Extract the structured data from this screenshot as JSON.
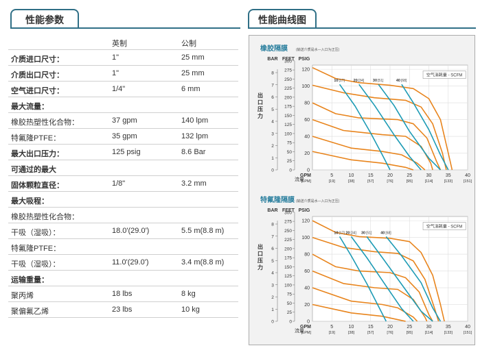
{
  "left_tab": {
    "label": "性能参数"
  },
  "right_tab": {
    "label": "性能曲线图"
  },
  "spec": {
    "header": {
      "col1": "",
      "col2": "英制",
      "col3": "公制"
    },
    "rows": [
      {
        "label": "介质进口尺寸：",
        "imperial": "1\"",
        "metric": "25 mm",
        "bold": true
      },
      {
        "label": "介质出口尺寸：",
        "imperial": "1\"",
        "metric": "25 mm",
        "bold": true
      },
      {
        "label": "空气进口尺寸：",
        "imperial": "1/4\"",
        "metric": "6 mm",
        "bold": true
      },
      {
        "label": "最大流量：",
        "imperial": "",
        "metric": "",
        "bold": true
      },
      {
        "label": "橡胶热塑性化合物：",
        "imperial": "37 gpm",
        "metric": "140 lpm",
        "bold": false
      },
      {
        "label": "特氟隆PTFE：",
        "imperial": "35 gpm",
        "metric": "132 lpm",
        "bold": false
      },
      {
        "label": "最大出口压力：",
        "imperial": "125 psig",
        "metric": "8.6 Bar",
        "bold": true
      },
      {
        "label": "可通过的最大",
        "imperial": "",
        "metric": "",
        "bold": true
      },
      {
        "label": "固体颗粒直径：",
        "imperial": "1/8\"",
        "metric": "3.2 mm",
        "bold": true
      },
      {
        "label": "最大吸程：",
        "imperial": "",
        "metric": "",
        "bold": true
      },
      {
        "label": "橡胶热塑性化合物：",
        "imperial": "",
        "metric": "",
        "bold": false
      },
      {
        "label": "干吸（湿吸）：",
        "imperial": "18.0'(29.0')",
        "metric": "5.5 m(8.8 m)",
        "bold": false
      },
      {
        "label": "特氟隆PTFE：",
        "imperial": "",
        "metric": "",
        "bold": false
      },
      {
        "label": "干吸（湿吸）：",
        "imperial": "11.0'(29.0')",
        "metric": "3.4 m(8.8 m)",
        "bold": false
      },
      {
        "label": "运输重量：",
        "imperial": "",
        "metric": "",
        "bold": true
      },
      {
        "label": "聚丙烯",
        "imperial": "18 lbs",
        "metric": "8 kg",
        "bold": false
      },
      {
        "label": "聚偏氟乙烯",
        "imperial": "23 lbs",
        "metric": "10 kg",
        "bold": false
      }
    ]
  },
  "chart_data": [
    {
      "type": "line",
      "title": "橡胶隔膜",
      "subtitle": "(输送介质是水—入口为正压)",
      "unit_headers": [
        "BAR",
        "FEET",
        "PSIG"
      ],
      "ylabel": "出口压力",
      "xlabel": "流量",
      "x_unit_labels": [
        "GPM",
        "[LPM]"
      ],
      "x_ticks": [
        "5",
        "10",
        "15",
        "20",
        "25",
        "30",
        "35",
        "40"
      ],
      "x_ticks_lpm": [
        "[19]",
        "[38]",
        "[57]",
        "[76]",
        "[95]",
        "[114]",
        "[133]",
        "[151]"
      ],
      "y_psig_ticks": [
        "0",
        "20",
        "40",
        "60",
        "80",
        "100",
        "120"
      ],
      "y_feet_ticks": [
        "0",
        "25",
        "50",
        "75",
        "100",
        "125",
        "150",
        "175",
        "200",
        "225",
        "250",
        "275",
        "300"
      ],
      "y_bar_ticks": [
        "0",
        "1",
        "2",
        "3",
        "4",
        "5",
        "6",
        "7",
        "8"
      ],
      "xlim": [
        0,
        40
      ],
      "ylim": [
        0,
        130
      ],
      "legend_box": "空气消耗量 - SCFM",
      "air_labels": [
        "10",
        "[17]",
        "20",
        "[34]",
        "30",
        "[51]",
        "40",
        "[68]"
      ],
      "pressure_curves": [
        {
          "color": "#e8841c",
          "points": [
            [
              0,
              122
            ],
            [
              6,
              109
            ],
            [
              12,
              104
            ],
            [
              20,
              101
            ],
            [
              26,
              97
            ],
            [
              30,
              85
            ],
            [
              33,
              60
            ],
            [
              35,
              20
            ],
            [
              36,
              0
            ]
          ]
        },
        {
          "color": "#e8841c",
          "points": [
            [
              0,
              101
            ],
            [
              8,
              92
            ],
            [
              16,
              86
            ],
            [
              24,
              83
            ],
            [
              28,
              75
            ],
            [
              31,
              55
            ],
            [
              33.5,
              20
            ],
            [
              34.5,
              0
            ]
          ]
        },
        {
          "color": "#e8841c",
          "points": [
            [
              0,
              80
            ],
            [
              6,
              67
            ],
            [
              12,
              62
            ],
            [
              22,
              60
            ],
            [
              26,
              55
            ],
            [
              29.5,
              38
            ],
            [
              32,
              10
            ],
            [
              33,
              0
            ]
          ]
        },
        {
          "color": "#e8841c",
          "points": [
            [
              0,
              60
            ],
            [
              8,
              47
            ],
            [
              18,
              42
            ],
            [
              24,
              40
            ],
            [
              28,
              28
            ],
            [
              30.5,
              8
            ],
            [
              31,
              0
            ]
          ]
        },
        {
          "color": "#e8841c",
          "points": [
            [
              0,
              40
            ],
            [
              10,
              26
            ],
            [
              18,
              22
            ],
            [
              23,
              18
            ],
            [
              27,
              8
            ],
            [
              29,
              0
            ]
          ]
        },
        {
          "color": "#e8841c",
          "points": [
            [
              0,
              22
            ],
            [
              10,
              12
            ],
            [
              18,
              8
            ],
            [
              24,
              3
            ],
            [
              26,
              0
            ]
          ]
        }
      ],
      "air_curves": [
        {
          "color": "#1d9bb5",
          "points": [
            [
              7,
              102
            ],
            [
              11,
              76
            ],
            [
              15,
              44
            ],
            [
              18,
              18
            ],
            [
              20,
              0
            ]
          ]
        },
        {
          "color": "#1d9bb5",
          "points": [
            [
              12,
              102
            ],
            [
              16,
              77
            ],
            [
              21,
              42
            ],
            [
              25,
              16
            ],
            [
              28,
              0
            ]
          ]
        },
        {
          "color": "#1d9bb5",
          "points": [
            [
              17,
              102
            ],
            [
              21,
              77
            ],
            [
              25,
              46
            ],
            [
              30,
              14
            ],
            [
              33,
              0
            ]
          ]
        },
        {
          "color": "#1d9bb5",
          "points": [
            [
              23,
              102
            ],
            [
              26,
              80
            ],
            [
              30,
              48
            ],
            [
              33,
              18
            ],
            [
              35,
              0
            ]
          ]
        }
      ]
    },
    {
      "type": "line",
      "title": "特氟隆隔膜",
      "subtitle": "(输送介质是水—入口为正压)",
      "unit_headers": [
        "BAR",
        "FEET",
        "PSIG"
      ],
      "ylabel": "出口压力",
      "xlabel": "流量",
      "x_unit_labels": [
        "GPM",
        "[LPM]"
      ],
      "x_ticks": [
        "5",
        "10",
        "15",
        "20",
        "25",
        "30",
        "35",
        "40"
      ],
      "x_ticks_lpm": [
        "[19]",
        "[38]",
        "[57]",
        "[76]",
        "[95]",
        "[114]",
        "[133]",
        "[151]"
      ],
      "y_psig_ticks": [
        "0",
        "20",
        "40",
        "60",
        "80",
        "100",
        "120"
      ],
      "y_feet_ticks": [
        "0",
        "25",
        "50",
        "75",
        "100",
        "125",
        "150",
        "175",
        "200",
        "225",
        "250",
        "275",
        "300"
      ],
      "y_bar_ticks": [
        "0",
        "1",
        "2",
        "3",
        "4",
        "5",
        "6",
        "7",
        "8"
      ],
      "xlim": [
        0,
        40
      ],
      "ylim": [
        0,
        130
      ],
      "legend_box": "空气消耗量 - SCFM",
      "air_labels": [
        "10",
        "[17]",
        "20",
        "[34]",
        "30",
        "[51]",
        "40",
        "[68]"
      ],
      "pressure_curves": [
        {
          "color": "#e8841c",
          "points": [
            [
              0,
              120
            ],
            [
              6,
              106
            ],
            [
              12,
              101
            ],
            [
              20,
              99
            ],
            [
              25,
              95
            ],
            [
              28,
              82
            ],
            [
              31,
              55
            ],
            [
              33,
              20
            ],
            [
              34,
              0
            ]
          ]
        },
        {
          "color": "#e8841c",
          "points": [
            [
              0,
              100
            ],
            [
              8,
              88
            ],
            [
              16,
              83
            ],
            [
              22,
              81
            ],
            [
              26,
              72
            ],
            [
              29,
              50
            ],
            [
              31.5,
              15
            ],
            [
              32.5,
              0
            ]
          ]
        },
        {
          "color": "#e8841c",
          "points": [
            [
              0,
              80
            ],
            [
              6,
              65
            ],
            [
              12,
              60
            ],
            [
              20,
              58
            ],
            [
              24,
              52
            ],
            [
              27.5,
              35
            ],
            [
              30,
              8
            ],
            [
              31,
              0
            ]
          ]
        },
        {
          "color": "#e8841c",
          "points": [
            [
              0,
              60
            ],
            [
              8,
              45
            ],
            [
              16,
              40
            ],
            [
              22,
              38
            ],
            [
              26,
              26
            ],
            [
              29,
              5
            ],
            [
              29.5,
              0
            ]
          ]
        },
        {
          "color": "#e8841c",
          "points": [
            [
              0,
              40
            ],
            [
              10,
              24
            ],
            [
              18,
              20
            ],
            [
              22,
              16
            ],
            [
              26,
              5
            ],
            [
              27,
              0
            ]
          ]
        },
        {
          "color": "#e8841c",
          "points": [
            [
              0,
              20
            ],
            [
              10,
              10
            ],
            [
              18,
              6
            ],
            [
              23,
              1
            ],
            [
              24,
              0
            ]
          ]
        }
      ],
      "air_curves": [
        {
          "color": "#1d9bb5",
          "points": [
            [
              7,
              101
            ],
            [
              10,
              78
            ],
            [
              14,
              45
            ],
            [
              17,
              18
            ],
            [
              19,
              0
            ]
          ]
        },
        {
          "color": "#1d9bb5",
          "points": [
            [
              10,
              101
            ],
            [
              14,
              76
            ],
            [
              19,
              42
            ],
            [
              23,
              15
            ],
            [
              26,
              0
            ]
          ]
        },
        {
          "color": "#1d9bb5",
          "points": [
            [
              14,
              101
            ],
            [
              18,
              76
            ],
            [
              23,
              44
            ],
            [
              28,
              12
            ],
            [
              31,
              0
            ]
          ]
        },
        {
          "color": "#1d9bb5",
          "points": [
            [
              19,
              101
            ],
            [
              23,
              78
            ],
            [
              28,
              46
            ],
            [
              31,
              16
            ],
            [
              33,
              0
            ]
          ]
        }
      ]
    }
  ]
}
